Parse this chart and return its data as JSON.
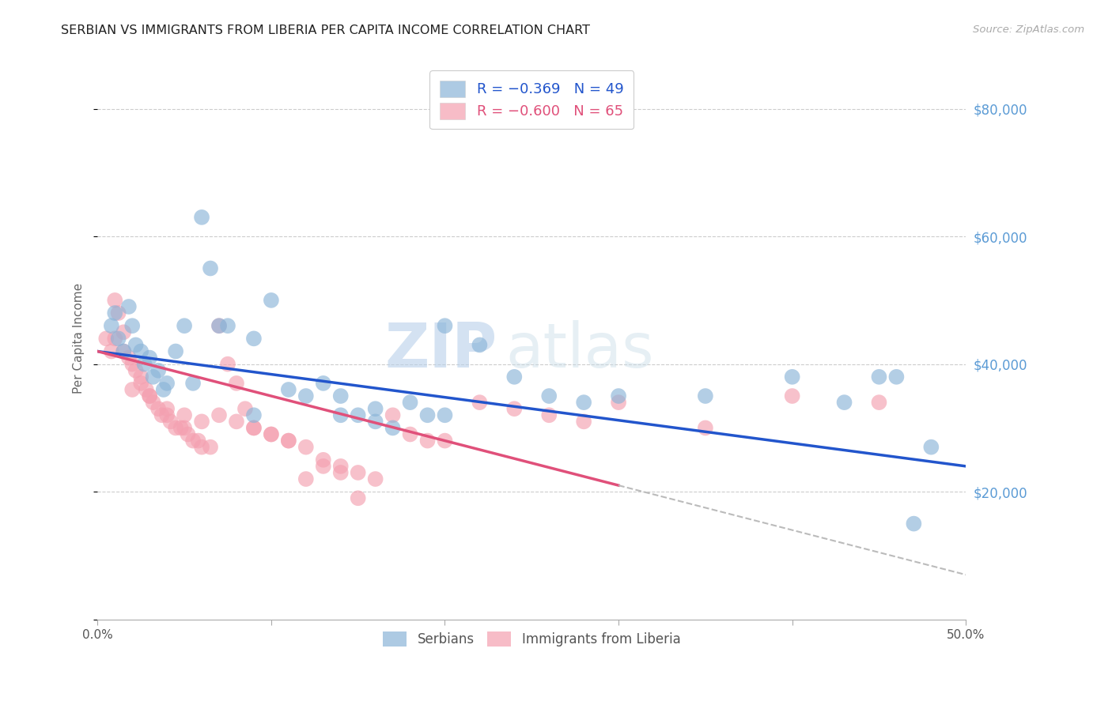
{
  "title": "SERBIAN VS IMMIGRANTS FROM LIBERIA PER CAPITA INCOME CORRELATION CHART",
  "source": "Source: ZipAtlas.com",
  "ylabel": "Per Capita Income",
  "yticks": [
    0,
    20000,
    40000,
    60000,
    80000
  ],
  "xlim": [
    0.0,
    0.5
  ],
  "ylim": [
    0,
    88000
  ],
  "watermark_zip": "ZIP",
  "watermark_atlas": "atlas",
  "legend_entries": [
    {
      "label": "R = −0.369   N = 49",
      "color": "#8ab4d8"
    },
    {
      "label": "R = −0.600   N = 65",
      "color": "#f4a0b0"
    }
  ],
  "legend_bottom": [
    "Serbians",
    "Immigrants from Liberia"
  ],
  "serbian_color": "#8ab4d8",
  "liberia_color": "#f4a0b0",
  "trend_serbian_color": "#2255cc",
  "trend_liberia_color": "#e0507a",
  "trend_liberia_dashed_color": "#bbbbbb",
  "background_color": "#ffffff",
  "grid_color": "#cccccc",
  "title_color": "#333333",
  "right_tick_color": "#5b9bd5",
  "serbian_x": [
    0.008,
    0.01,
    0.012,
    0.015,
    0.018,
    0.02,
    0.022,
    0.025,
    0.027,
    0.03,
    0.032,
    0.035,
    0.038,
    0.04,
    0.045,
    0.05,
    0.055,
    0.06,
    0.065,
    0.07,
    0.075,
    0.09,
    0.1,
    0.11,
    0.12,
    0.13,
    0.14,
    0.15,
    0.16,
    0.17,
    0.18,
    0.19,
    0.2,
    0.22,
    0.24,
    0.26,
    0.28,
    0.3,
    0.35,
    0.4,
    0.43,
    0.45,
    0.46,
    0.47,
    0.48,
    0.14,
    0.16,
    0.09,
    0.2
  ],
  "serbian_y": [
    46000,
    48000,
    44000,
    42000,
    49000,
    46000,
    43000,
    42000,
    40000,
    41000,
    38000,
    39000,
    36000,
    37000,
    42000,
    46000,
    37000,
    63000,
    55000,
    46000,
    46000,
    44000,
    50000,
    36000,
    35000,
    37000,
    35000,
    32000,
    33000,
    30000,
    34000,
    32000,
    46000,
    43000,
    38000,
    35000,
    34000,
    35000,
    35000,
    38000,
    34000,
    38000,
    38000,
    15000,
    27000,
    32000,
    31000,
    32000,
    32000
  ],
  "liberia_x": [
    0.005,
    0.008,
    0.01,
    0.012,
    0.015,
    0.015,
    0.018,
    0.02,
    0.022,
    0.025,
    0.025,
    0.028,
    0.03,
    0.032,
    0.035,
    0.037,
    0.04,
    0.042,
    0.045,
    0.048,
    0.05,
    0.052,
    0.055,
    0.058,
    0.06,
    0.065,
    0.07,
    0.075,
    0.08,
    0.085,
    0.09,
    0.1,
    0.11,
    0.12,
    0.13,
    0.14,
    0.15,
    0.16,
    0.17,
    0.18,
    0.19,
    0.2,
    0.22,
    0.24,
    0.26,
    0.28,
    0.3,
    0.35,
    0.4,
    0.45,
    0.01,
    0.02,
    0.03,
    0.04,
    0.05,
    0.06,
    0.07,
    0.08,
    0.09,
    0.1,
    0.11,
    0.12,
    0.13,
    0.14,
    0.15
  ],
  "liberia_y": [
    44000,
    42000,
    50000,
    48000,
    45000,
    42000,
    41000,
    40000,
    39000,
    38000,
    37000,
    36000,
    35000,
    34000,
    33000,
    32000,
    32000,
    31000,
    30000,
    30000,
    30000,
    29000,
    28000,
    28000,
    27000,
    27000,
    46000,
    40000,
    37000,
    33000,
    30000,
    29000,
    28000,
    27000,
    25000,
    24000,
    23000,
    22000,
    32000,
    29000,
    28000,
    28000,
    34000,
    33000,
    32000,
    31000,
    34000,
    30000,
    35000,
    34000,
    44000,
    36000,
    35000,
    33000,
    32000,
    31000,
    32000,
    31000,
    30000,
    29000,
    28000,
    22000,
    24000,
    23000,
    19000
  ],
  "trend_serbian_x0": 0.0,
  "trend_serbian_x1": 0.5,
  "trend_serbian_y0": 42000,
  "trend_serbian_y1": 24000,
  "trend_liberia_x0": 0.0,
  "trend_liberia_x1": 0.3,
  "trend_liberia_y0": 42000,
  "trend_liberia_y1": 21000,
  "trend_liberia_dash_x0": 0.3,
  "trend_liberia_dash_x1": 0.5,
  "trend_liberia_dash_y0": 21000,
  "trend_liberia_dash_y1": 7000
}
